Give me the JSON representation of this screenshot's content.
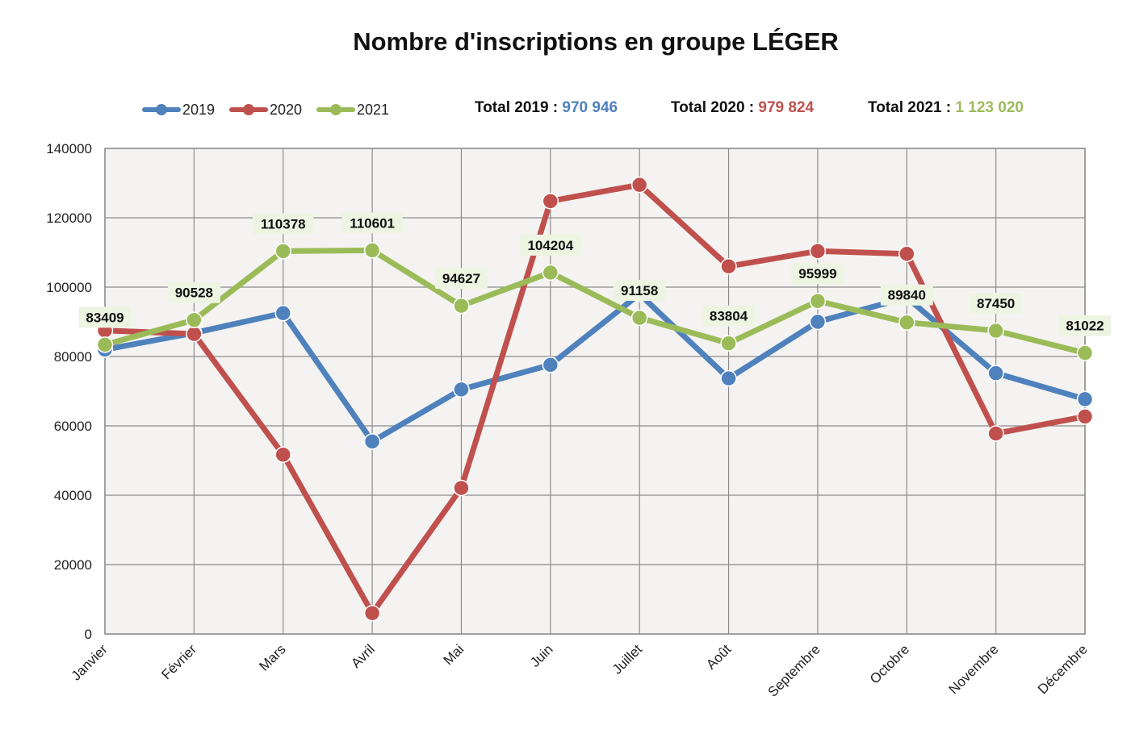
{
  "colors": {
    "s2019": "#4f81bd",
    "s2020": "#c0504d",
    "s2021": "#9bbb59",
    "grid": "#8c8c8c",
    "plot_bg": "#f4f3f1",
    "label_bg": "#eef4e2"
  },
  "totals": [
    {
      "label": "Total 2019 :",
      "value": "970 946"
    },
    {
      "label": "Total 2020 :",
      "value": "979 824"
    },
    {
      "label": "Total 2021 :",
      "value": "1 123 020"
    }
  ],
  "chart_data": {
    "type": "line",
    "title": "Nombre d'inscriptions en groupe LÉGER",
    "xlabel": "",
    "ylabel": "",
    "categories": [
      "Janvier",
      "Février",
      "Mars",
      "Avril",
      "Mai",
      "Juin",
      "Juillet",
      "Août",
      "Septembre",
      "Octobre",
      "Novembre",
      "Décembre"
    ],
    "ylim": [
      0,
      140000
    ],
    "yticks": [
      "0",
      "20000",
      "40000",
      "60000",
      "80000",
      "100000",
      "120000",
      "140000"
    ],
    "grid": true,
    "legend_position": "top-left",
    "series": [
      {
        "name": "2019",
        "values": [
          82000,
          86800,
          92500,
          55500,
          70500,
          77600,
          98000,
          73700,
          90000,
          97000,
          75200,
          67700
        ]
      },
      {
        "name": "2020",
        "values": [
          87500,
          86500,
          51700,
          6000,
          42100,
          124800,
          129500,
          106000,
          110400,
          109600,
          57800,
          62700
        ]
      },
      {
        "name": "2021",
        "values": [
          83409,
          90528,
          110378,
          110601,
          94627,
          104204,
          91158,
          83804,
          95999,
          89840,
          87450,
          81022
        ],
        "labels": [
          "83409",
          "90528",
          "110378",
          "110601",
          "94627",
          "104204",
          "91158",
          "83804",
          "95999",
          "89840",
          "87450",
          "81022"
        ]
      }
    ]
  }
}
